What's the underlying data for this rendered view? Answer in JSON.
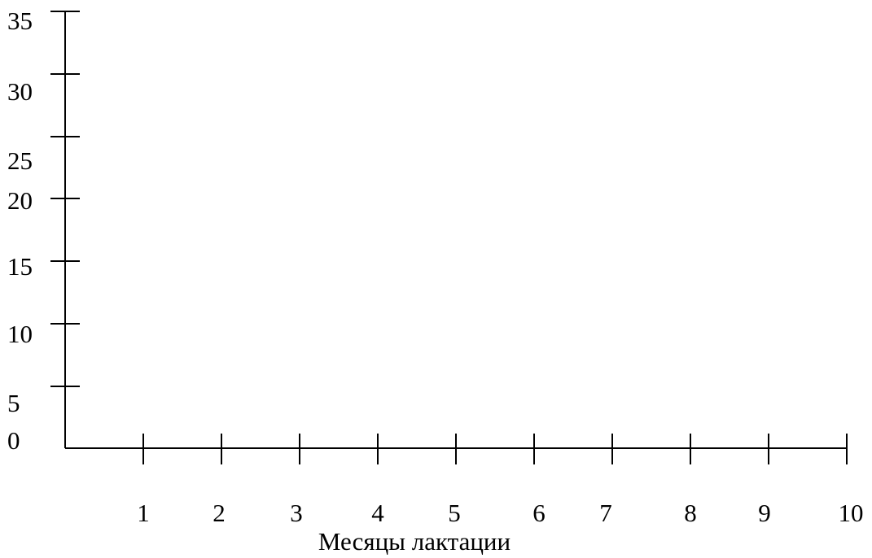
{
  "chart_data": {
    "type": "line",
    "title": "",
    "xlabel": "Месяцы лактации",
    "ylabel": "",
    "x_ticks": [
      "1",
      "2",
      "3",
      "4",
      "5",
      "6",
      "7",
      "8",
      "9",
      "10"
    ],
    "y_ticks": [
      "0",
      "5",
      "10",
      "15",
      "20",
      "25",
      "30",
      "35"
    ],
    "xlim": [
      0,
      10
    ],
    "ylim": [
      0,
      35
    ],
    "grid": false,
    "series": []
  }
}
